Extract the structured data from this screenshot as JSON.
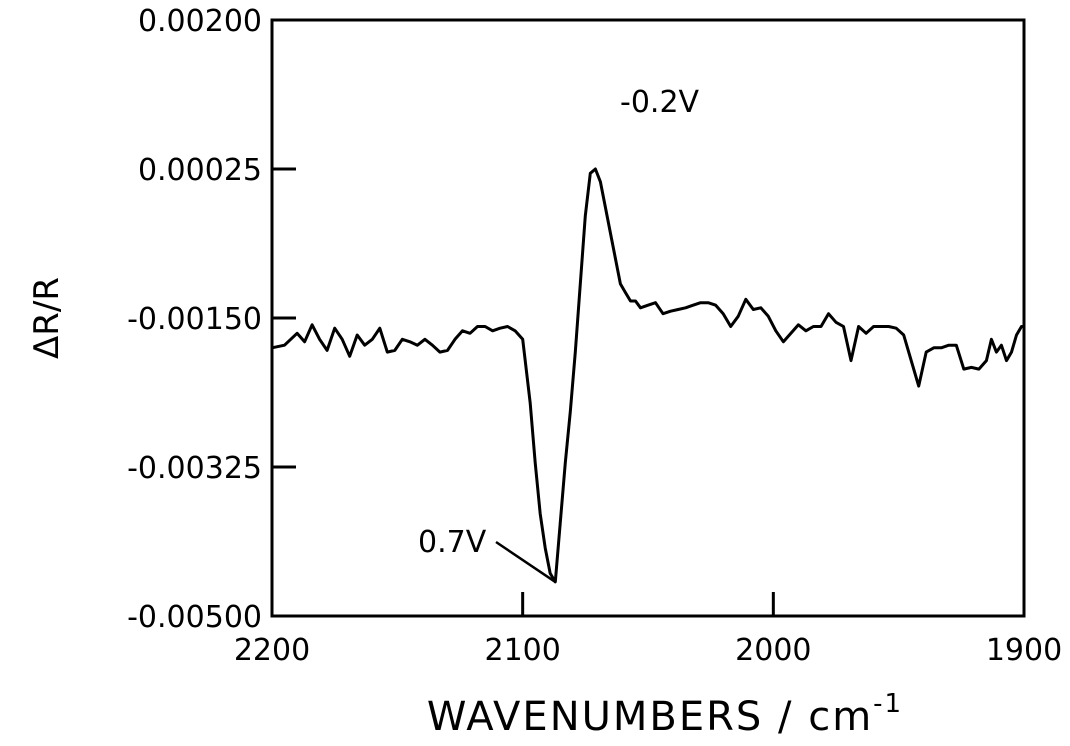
{
  "chart_data": {
    "type": "line",
    "title": "",
    "xlabel": "WAVENUMBERS / cm",
    "xlabel_superscript": "-1",
    "ylabel": "ΔR/R",
    "xlim": [
      2200,
      1900
    ],
    "ylim": [
      -0.005,
      0.002
    ],
    "x_reversed": true,
    "grid": false,
    "x_ticks": [
      2200,
      2100,
      2000,
      1900
    ],
    "x_tick_labels": [
      "2200",
      "2100",
      "2000",
      "1900"
    ],
    "y_ticks": [
      0.002,
      0.00025,
      -0.0015,
      -0.00325,
      -0.005
    ],
    "y_tick_labels": [
      "0.00200",
      "0.00025",
      "-0.00150",
      "-0.00325",
      "-0.00500"
    ],
    "annotations": [
      {
        "text": "-0.2V",
        "x": 2068,
        "y": 0.00025
      },
      {
        "text": "0.7V",
        "x": 2087,
        "y": -0.0045
      }
    ],
    "series": [
      {
        "x": [
          2200,
          2195,
          2190,
          2187,
          2184,
          2181,
          2178,
          2175,
          2172,
          2169,
          2166,
          2163,
          2160,
          2157,
          2154,
          2151,
          2148,
          2145,
          2142,
          2139,
          2136,
          2133,
          2130,
          2127,
          2124,
          2121,
          2118,
          2115,
          2112,
          2109,
          2106,
          2103,
          2100,
          2097,
          2095,
          2093,
          2091,
          2089,
          2087,
          2085,
          2083,
          2081,
          2079,
          2077,
          2075,
          2073,
          2071,
          2069,
          2067,
          2065,
          2063,
          2061,
          2059,
          2057,
          2055,
          2053,
          2050,
          2047,
          2044,
          2041,
          2038,
          2035,
          2032,
          2029,
          2026,
          2023,
          2020,
          2017,
          2014,
          2011,
          2008,
          2005,
          2002,
          1999,
          1996,
          1993,
          1990,
          1987,
          1984,
          1981,
          1978,
          1975,
          1972,
          1969,
          1966,
          1963,
          1960,
          1957,
          1954,
          1951,
          1948,
          1945,
          1942,
          1939,
          1936,
          1933,
          1930,
          1927,
          1924,
          1921,
          1918,
          1915,
          1913,
          1911,
          1909,
          1907,
          1905,
          1903,
          1901,
          1900
        ],
        "y": [
          -0.00185,
          -0.00182,
          -0.00168,
          -0.00178,
          -0.00158,
          -0.00175,
          -0.00188,
          -0.00162,
          -0.00175,
          -0.00195,
          -0.0017,
          -0.00182,
          -0.00175,
          -0.00162,
          -0.0019,
          -0.00188,
          -0.00175,
          -0.00178,
          -0.00182,
          -0.00175,
          -0.00182,
          -0.0019,
          -0.00188,
          -0.00175,
          -0.00165,
          -0.00168,
          -0.0016,
          -0.0016,
          -0.00165,
          -0.00162,
          -0.0016,
          -0.00165,
          -0.00175,
          -0.0025,
          -0.0032,
          -0.0038,
          -0.0042,
          -0.0045,
          -0.0046,
          -0.0039,
          -0.0032,
          -0.0026,
          -0.0019,
          -0.0011,
          -0.0003,
          0.0002,
          0.00025,
          0.0001,
          -0.0002,
          -0.0005,
          -0.0008,
          -0.0011,
          -0.0012,
          -0.0013,
          -0.0013,
          -0.00138,
          -0.00135,
          -0.00132,
          -0.00145,
          -0.00142,
          -0.0014,
          -0.00138,
          -0.00135,
          -0.00132,
          -0.00132,
          -0.00135,
          -0.00145,
          -0.0016,
          -0.00148,
          -0.00128,
          -0.0014,
          -0.00138,
          -0.00148,
          -0.00165,
          -0.00178,
          -0.00168,
          -0.00158,
          -0.00165,
          -0.0016,
          -0.0016,
          -0.00145,
          -0.00155,
          -0.0016,
          -0.002,
          -0.0016,
          -0.00168,
          -0.0016,
          -0.0016,
          -0.0016,
          -0.00162,
          -0.0017,
          -0.002,
          -0.0023,
          -0.0019,
          -0.00185,
          -0.00185,
          -0.00182,
          -0.00182,
          -0.0021,
          -0.00208,
          -0.0021,
          -0.002,
          -0.00175,
          -0.0019,
          -0.00182,
          -0.002,
          -0.0019,
          -0.0017,
          -0.0016,
          -0.0016
        ]
      }
    ]
  }
}
